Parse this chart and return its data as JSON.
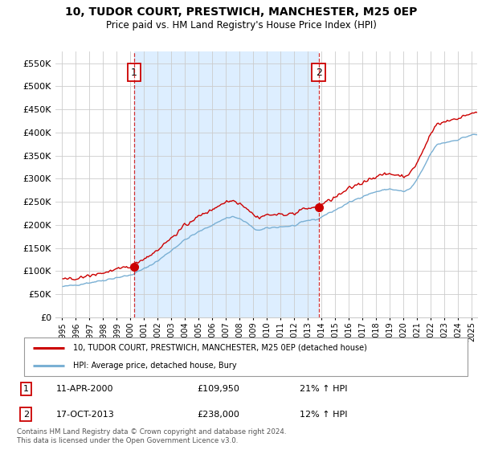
{
  "title": "10, TUDOR COURT, PRESTWICH, MANCHESTER, M25 0EP",
  "subtitle": "Price paid vs. HM Land Registry’s House Price Index (HPI)",
  "subtitle2": "Price paid vs. HM Land Registry's House Price Index (HPI)",
  "ylim": [
    0,
    575000
  ],
  "ytick_vals": [
    0,
    50000,
    100000,
    150000,
    200000,
    250000,
    300000,
    350000,
    400000,
    450000,
    500000,
    550000
  ],
  "xmin_year": 1994.5,
  "xmax_year": 2025.4,
  "xtick_years": [
    1995,
    1996,
    1997,
    1998,
    1999,
    2000,
    2001,
    2002,
    2003,
    2004,
    2005,
    2006,
    2007,
    2008,
    2009,
    2010,
    2011,
    2012,
    2013,
    2014,
    2015,
    2016,
    2017,
    2018,
    2019,
    2020,
    2021,
    2022,
    2023,
    2024,
    2025
  ],
  "sale1_year": 2000.27,
  "sale1_price": 109950,
  "sale1_label": "1",
  "sale1_date": "11-APR-2000",
  "sale1_pct": "21%",
  "sale2_year": 2013.79,
  "sale2_price": 238000,
  "sale2_label": "2",
  "sale2_date": "17-OCT-2013",
  "sale2_pct": "12%",
  "line_color_property": "#cc0000",
  "line_color_hpi": "#7ab0d4",
  "dot_color_property": "#cc0000",
  "fill_color": "#ddeeff",
  "legend_label_property": "10, TUDOR COURT, PRESTWICH, MANCHESTER, M25 0EP (detached house)",
  "legend_label_hpi": "HPI: Average price, detached house, Bury",
  "footer": "Contains HM Land Registry data © Crown copyright and database right 2024.\nThis data is licensed under the Open Government Licence v3.0.",
  "background_color": "#ffffff",
  "grid_color": "#cccccc",
  "vline_color": "#cc0000",
  "vline_style": "--"
}
